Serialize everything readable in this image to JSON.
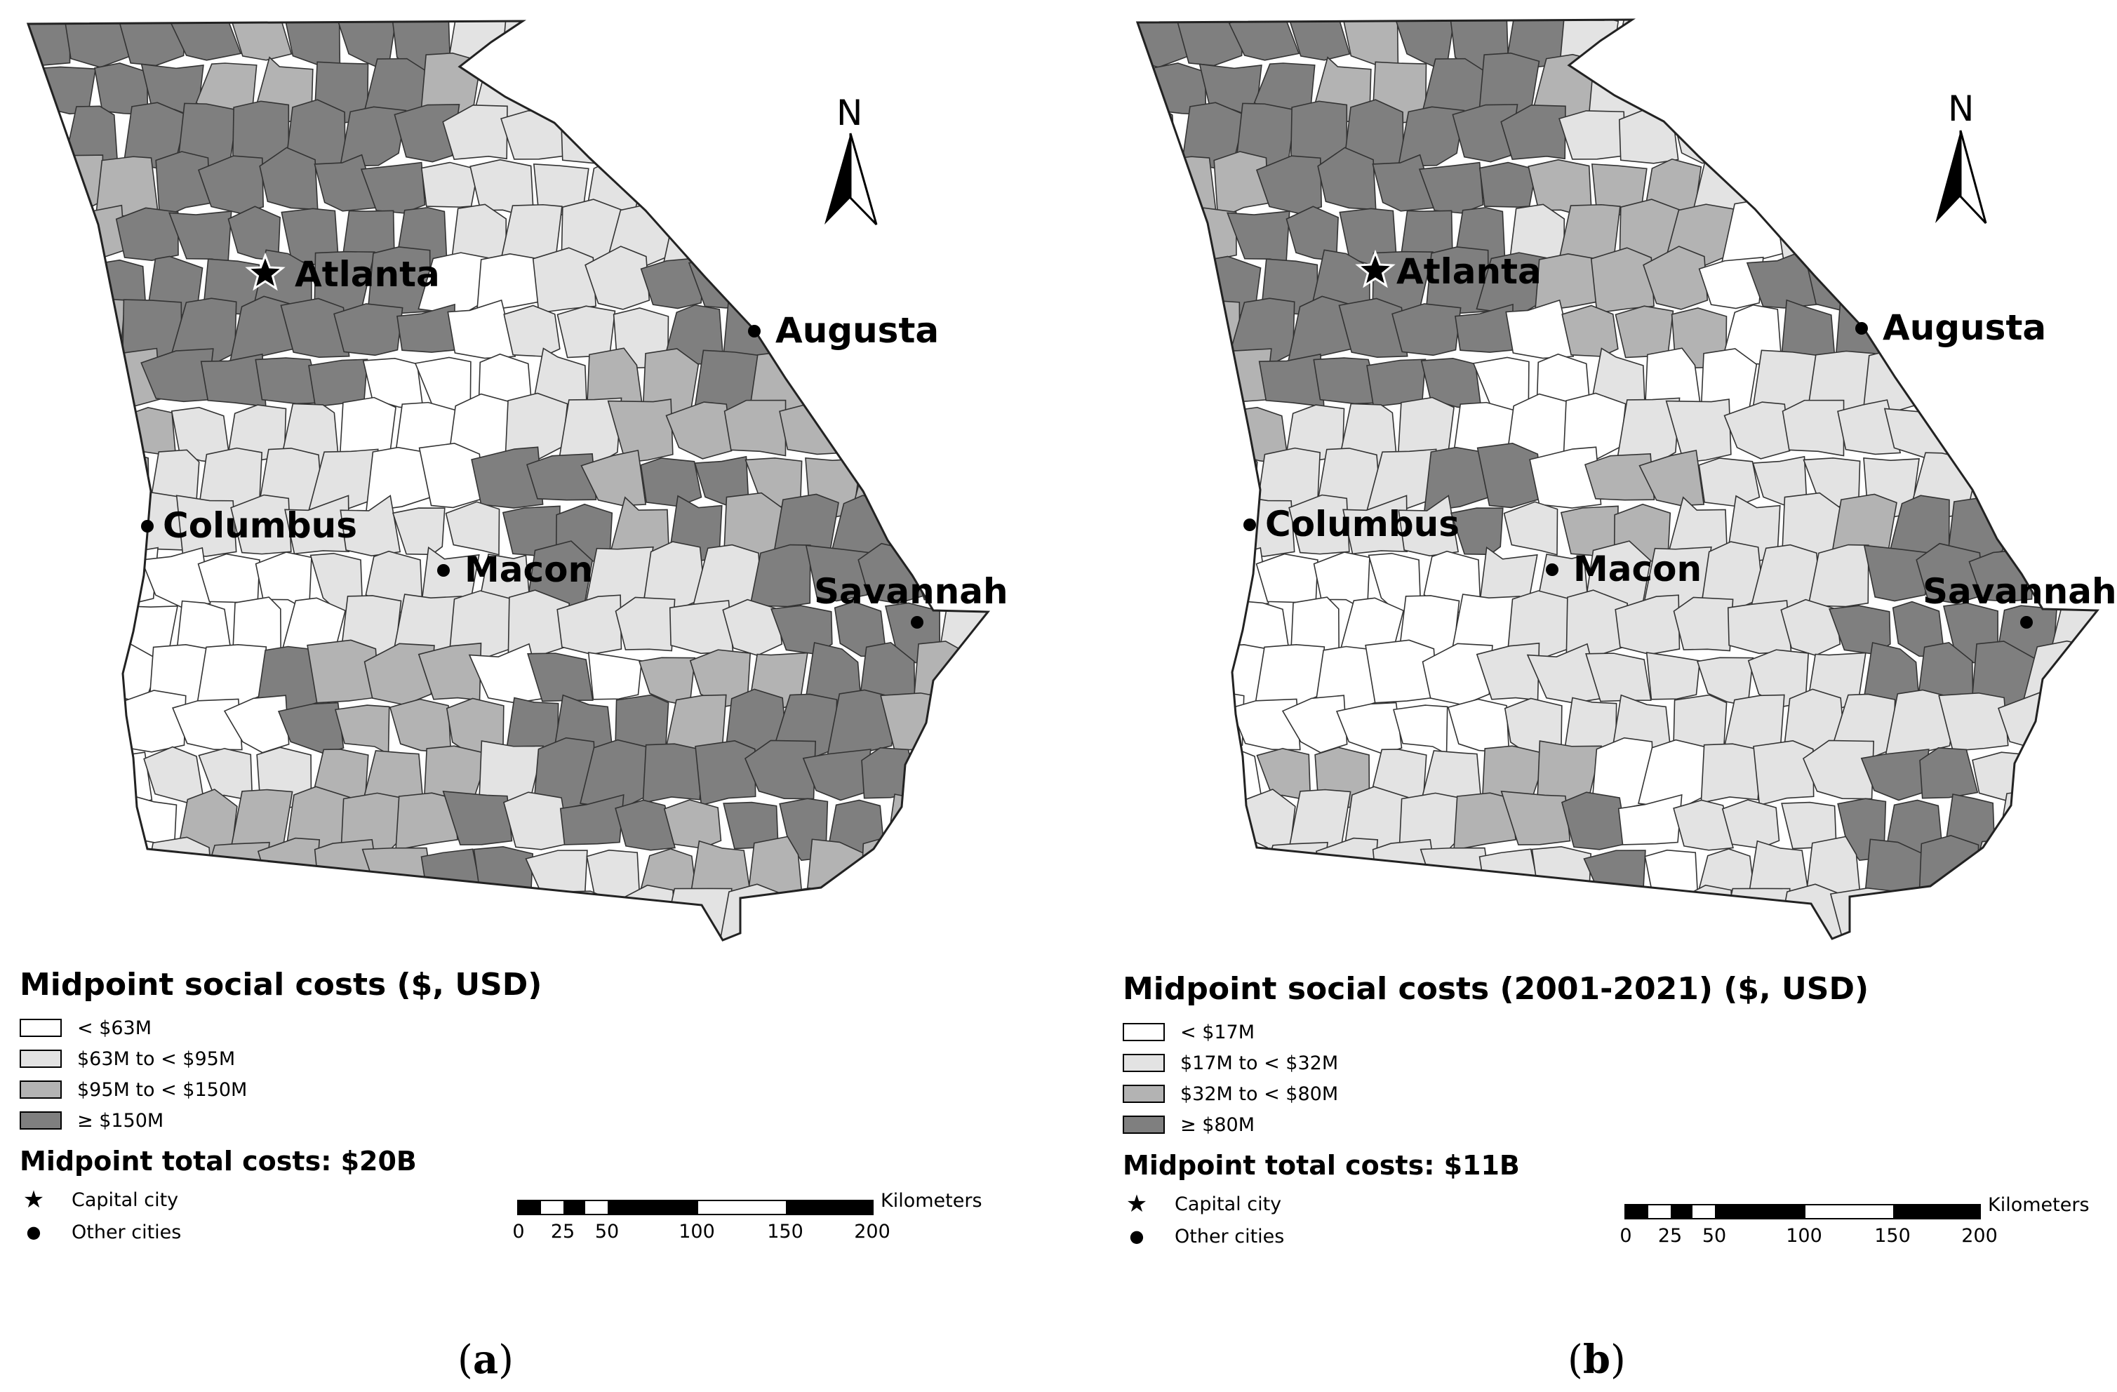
{
  "colors": {
    "class1": "#ffffff",
    "class2": "#e3e3e3",
    "class3": "#b3b3b3",
    "class4": "#7f7f7f",
    "border": "#333333"
  },
  "cities": {
    "atlanta": "Atlanta",
    "augusta": "Augusta",
    "columbus": "Columbus",
    "macon": "Macon",
    "savannah": "Savannah"
  },
  "north_label": "N",
  "panels": [
    {
      "letter_open": "(",
      "letter": "a",
      "letter_close": ")",
      "legend_title": "Midpoint social costs ($, USD)",
      "classes": [
        "< $63M",
        "$63M to < $95M",
        "$95M to < $150M",
        "≥ $150M"
      ],
      "total": "Midpoint total costs: $20B",
      "capital_label": "Capital city",
      "other_label": "Other cities"
    },
    {
      "letter_open": "(",
      "letter": "b",
      "letter_close": ")",
      "legend_title": "Midpoint social costs (2001-2021) ($, USD)",
      "classes": [
        "< $17M",
        "$17M to < $32M",
        "$32M to < $80M",
        "≥ $80M"
      ],
      "total": "Midpoint total costs: $11B",
      "capital_label": "Capital city",
      "other_label": "Other cities"
    }
  ],
  "scale": {
    "unit": "Kilometers",
    "ticks": [
      "0",
      "25",
      "50",
      "100",
      "150",
      "200"
    ]
  }
}
